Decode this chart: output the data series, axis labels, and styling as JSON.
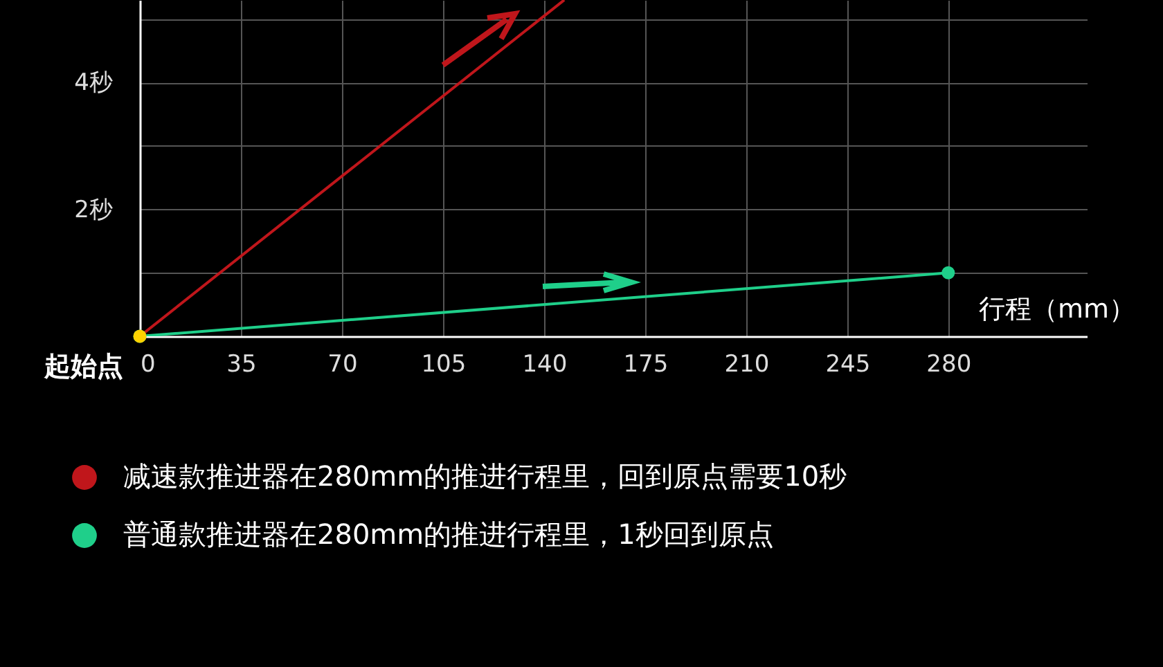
{
  "chart_data": {
    "type": "line",
    "xlabel": "行程（mm）",
    "series": [
      {
        "name": "减速款推进器在280mm的推进行程里，回到原点需要10秒",
        "color": "#c0161b",
        "x": [
          0,
          147
        ],
        "values": [
          0,
          5.3
        ]
      },
      {
        "name": "普通款推进器在280mm的推进行程里，1秒回到原点",
        "color": "#1fcf8a",
        "x": [
          0,
          280
        ],
        "values": [
          0,
          1
        ],
        "marker": "circle"
      }
    ],
    "annotations": [
      {
        "text": "起始点",
        "x": 0,
        "y": 0
      }
    ],
    "xlim": [
      0,
      328
    ],
    "xticks": [
      0,
      35,
      70,
      105,
      140,
      175,
      210,
      245,
      280
    ],
    "ylim": [
      0,
      5.3
    ],
    "yticks": [
      {
        "value": 1,
        "label": null
      },
      {
        "value": 2,
        "label": "2秒"
      },
      {
        "value": 3,
        "label": null
      },
      {
        "value": 4,
        "label": "4秒"
      },
      {
        "value": 5,
        "label": null
      }
    ],
    "grid": true,
    "legend": "bottom"
  }
}
